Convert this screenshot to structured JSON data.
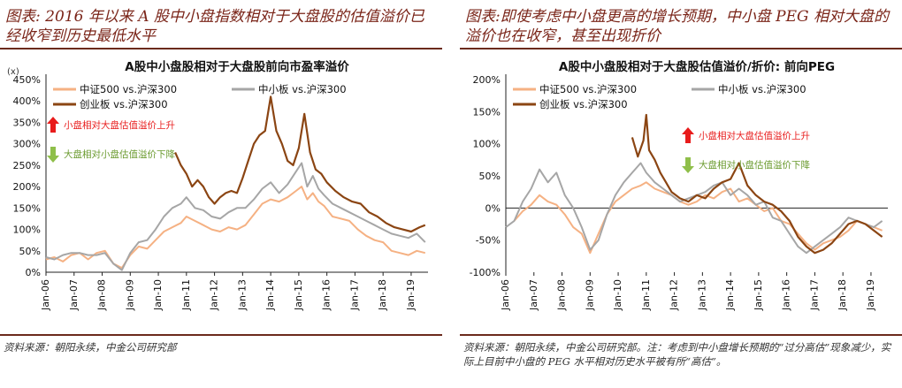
{
  "left": {
    "title": "图表: 2016 年以来 A 股中小盘指数相对于大盘股的估值溢价已经收窄到历史最低水平",
    "footer": "资料来源：朝阳永续，中金公司研究部",
    "up_note": "小盘相对大盘估值溢价上升",
    "down_note": "大盘相对小盘估值溢价下降"
  },
  "right": {
    "title": "图表:即使考虑中小盘更高的增长预期，中小盘 PEG 相对大盘的溢价也在收窄，甚至出现折价",
    "footer": "资料来源：朝阳永续，中金公司研究部。注：考虑到中小盘增长预期的“过分高估”现象减少，实际上目前中小盘的 PEG 水平相对历史水平被有所“高估”。",
    "up_note": "小盘相对大盘估值溢价上升",
    "down_note": "大盘相对小盘估值溢价下降"
  },
  "colors": {
    "zz500": "#f5b183",
    "zxb": "#a6a6a6",
    "cyb": "#8b4513",
    "up_arrow": "#e81c1c",
    "down_arrow": "#8fbf4a",
    "title": "#7a2418"
  },
  "chart_data": [
    {
      "type": "line",
      "title": "A股中小盘股相对于大盘股前向市盈率溢价",
      "unit_label": "(x)",
      "x_ticks": [
        "Jan-06",
        "Jan-07",
        "Jan-08",
        "Jan-09",
        "Jan-10",
        "Jan-11",
        "Jan-12",
        "Jan-13",
        "Jan-14",
        "Jan-15",
        "Jan-16",
        "Jan-17",
        "Jan-18",
        "Jan-19"
      ],
      "ylim": [
        0,
        450
      ],
      "y_ticks": [
        0,
        50,
        100,
        150,
        200,
        250,
        300,
        350,
        400,
        450
      ],
      "y_tick_suffix": "%",
      "x_range": [
        2006.0,
        2019.6
      ],
      "series": [
        {
          "name": "中证500 vs.沪深300",
          "key": "zz500",
          "x": [
            2006.0,
            2006.3,
            2006.6,
            2006.9,
            2007.2,
            2007.5,
            2007.8,
            2008.1,
            2008.4,
            2008.7,
            2009.0,
            2009.3,
            2009.6,
            2009.9,
            2010.2,
            2010.5,
            2010.8,
            2011.0,
            2011.3,
            2011.6,
            2011.9,
            2012.2,
            2012.5,
            2012.8,
            2013.1,
            2013.4,
            2013.7,
            2014.0,
            2014.3,
            2014.6,
            2014.9,
            2015.1,
            2015.3,
            2015.5,
            2015.7,
            2015.9,
            2016.2,
            2016.5,
            2016.8,
            2017.1,
            2017.4,
            2017.7,
            2018.0,
            2018.3,
            2018.6,
            2018.9,
            2019.2,
            2019.5
          ],
          "y": [
            30,
            35,
            25,
            40,
            45,
            30,
            45,
            50,
            20,
            10,
            40,
            60,
            55,
            75,
            95,
            105,
            115,
            130,
            120,
            110,
            100,
            95,
            105,
            100,
            110,
            135,
            160,
            170,
            165,
            175,
            190,
            200,
            170,
            185,
            165,
            155,
            130,
            125,
            120,
            100,
            85,
            75,
            70,
            50,
            45,
            40,
            50,
            45
          ]
        },
        {
          "name": "中小板 vs.沪深300",
          "key": "zxb",
          "x": [
            2006.0,
            2006.3,
            2006.6,
            2006.9,
            2007.2,
            2007.5,
            2007.8,
            2008.1,
            2008.4,
            2008.7,
            2009.0,
            2009.3,
            2009.6,
            2009.9,
            2010.2,
            2010.5,
            2010.8,
            2011.0,
            2011.3,
            2011.6,
            2011.9,
            2012.2,
            2012.5,
            2012.8,
            2013.1,
            2013.4,
            2013.7,
            2014.0,
            2014.3,
            2014.6,
            2014.9,
            2015.1,
            2015.3,
            2015.5,
            2015.7,
            2015.9,
            2016.2,
            2016.5,
            2016.8,
            2017.1,
            2017.4,
            2017.7,
            2018.0,
            2018.3,
            2018.6,
            2018.9,
            2019.2,
            2019.5
          ],
          "y": [
            35,
            30,
            40,
            45,
            45,
            40,
            40,
            45,
            20,
            5,
            45,
            70,
            75,
            100,
            130,
            150,
            160,
            175,
            150,
            145,
            130,
            125,
            140,
            150,
            150,
            170,
            195,
            210,
            185,
            205,
            235,
            255,
            200,
            225,
            195,
            180,
            160,
            150,
            140,
            130,
            120,
            110,
            100,
            90,
            85,
            80,
            90,
            70
          ]
        },
        {
          "name": "创业板 vs.沪深300",
          "key": "cyb",
          "x": [
            2010.6,
            2010.8,
            2011.0,
            2011.2,
            2011.4,
            2011.6,
            2011.8,
            2012.0,
            2012.2,
            2012.4,
            2012.6,
            2012.8,
            2013.0,
            2013.2,
            2013.4,
            2013.6,
            2013.8,
            2014.0,
            2014.2,
            2014.4,
            2014.6,
            2014.8,
            2015.0,
            2015.2,
            2015.4,
            2015.6,
            2015.8,
            2016.0,
            2016.3,
            2016.6,
            2016.9,
            2017.2,
            2017.5,
            2017.8,
            2018.1,
            2018.4,
            2018.7,
            2019.0,
            2019.3,
            2019.5
          ],
          "y": [
            280,
            250,
            230,
            200,
            215,
            200,
            175,
            160,
            175,
            185,
            190,
            185,
            220,
            260,
            300,
            320,
            330,
            410,
            330,
            300,
            260,
            250,
            290,
            370,
            280,
            240,
            230,
            210,
            190,
            175,
            165,
            160,
            140,
            130,
            115,
            105,
            100,
            95,
            105,
            110
          ]
        }
      ]
    },
    {
      "type": "line",
      "title": "A股中小盘股相对于大盘股估值溢价/折价: 前向PEG",
      "unit_label": "",
      "x_ticks": [
        "Jan-06",
        "Jan-07",
        "Jan-08",
        "Jan-09",
        "Jan-10",
        "Jan-11",
        "Jan-12",
        "Jan-13",
        "Jan-14",
        "Jan-15",
        "Jan-16",
        "Jan-17",
        "Jan-18",
        "Jan-19"
      ],
      "ylim": [
        -100,
        200
      ],
      "y_ticks": [
        -100,
        -50,
        0,
        50,
        100,
        150,
        200
      ],
      "y_tick_suffix": "%",
      "x_range": [
        2006.0,
        2019.6
      ],
      "series": [
        {
          "name": "中证500 vs.沪深300",
          "key": "zz500",
          "x": [
            2006.3,
            2006.6,
            2006.9,
            2007.2,
            2007.5,
            2007.8,
            2008.1,
            2008.4,
            2008.7,
            2009.0,
            2009.3,
            2009.6,
            2009.9,
            2010.2,
            2010.5,
            2010.8,
            2011.0,
            2011.3,
            2011.6,
            2011.9,
            2012.2,
            2012.5,
            2012.8,
            2013.1,
            2013.4,
            2013.7,
            2014.0,
            2014.3,
            2014.6,
            2014.9,
            2015.2,
            2015.5,
            2015.8,
            2016.1,
            2016.4,
            2016.7,
            2017.0,
            2017.3,
            2017.6,
            2017.9,
            2018.2,
            2018.5,
            2018.8,
            2019.1,
            2019.4
          ],
          "y": [
            -20,
            -5,
            5,
            20,
            10,
            5,
            -10,
            -30,
            -40,
            -70,
            -40,
            -10,
            10,
            20,
            30,
            35,
            40,
            30,
            25,
            20,
            10,
            5,
            10,
            20,
            15,
            25,
            30,
            10,
            15,
            5,
            -5,
            0,
            -20,
            -25,
            -40,
            -55,
            -65,
            -55,
            -50,
            -45,
            -35,
            -20,
            -25,
            -30,
            -35
          ]
        },
        {
          "name": "中小板 vs.沪深300",
          "key": "zxb",
          "x": [
            2006.0,
            2006.3,
            2006.6,
            2006.9,
            2007.2,
            2007.5,
            2007.8,
            2008.1,
            2008.4,
            2008.7,
            2009.0,
            2009.3,
            2009.6,
            2009.9,
            2010.2,
            2010.5,
            2010.8,
            2011.0,
            2011.3,
            2011.6,
            2011.9,
            2012.2,
            2012.5,
            2012.8,
            2013.1,
            2013.4,
            2013.7,
            2014.0,
            2014.3,
            2014.6,
            2014.9,
            2015.2,
            2015.5,
            2015.8,
            2016.1,
            2016.4,
            2016.7,
            2017.0,
            2017.3,
            2017.6,
            2017.9,
            2018.2,
            2018.5,
            2018.8,
            2019.1,
            2019.4
          ],
          "y": [
            -30,
            -20,
            10,
            30,
            60,
            40,
            55,
            20,
            0,
            -30,
            -65,
            -50,
            -10,
            20,
            40,
            55,
            70,
            55,
            40,
            30,
            20,
            10,
            15,
            20,
            25,
            35,
            40,
            20,
            30,
            20,
            5,
            10,
            -15,
            -20,
            -40,
            -60,
            -70,
            -60,
            -50,
            -40,
            -30,
            -15,
            -20,
            -25,
            -30,
            -20
          ]
        },
        {
          "name": "创业板 vs.沪深300",
          "key": "cyb",
          "x": [
            2010.5,
            2010.7,
            2010.9,
            2011.0,
            2011.1,
            2011.3,
            2011.5,
            2011.7,
            2011.9,
            2012.2,
            2012.5,
            2012.8,
            2013.1,
            2013.4,
            2013.7,
            2014.0,
            2014.3,
            2014.6,
            2014.9,
            2015.2,
            2015.5,
            2015.8,
            2016.1,
            2016.4,
            2016.7,
            2017.0,
            2017.3,
            2017.6,
            2017.9,
            2018.2,
            2018.5,
            2018.8,
            2019.1,
            2019.4
          ],
          "y": [
            110,
            80,
            105,
            145,
            90,
            75,
            55,
            40,
            25,
            15,
            10,
            20,
            15,
            30,
            40,
            45,
            70,
            35,
            20,
            10,
            5,
            -5,
            -20,
            -45,
            -60,
            -70,
            -65,
            -55,
            -40,
            -25,
            -20,
            -25,
            -35,
            -45
          ]
        }
      ]
    }
  ]
}
